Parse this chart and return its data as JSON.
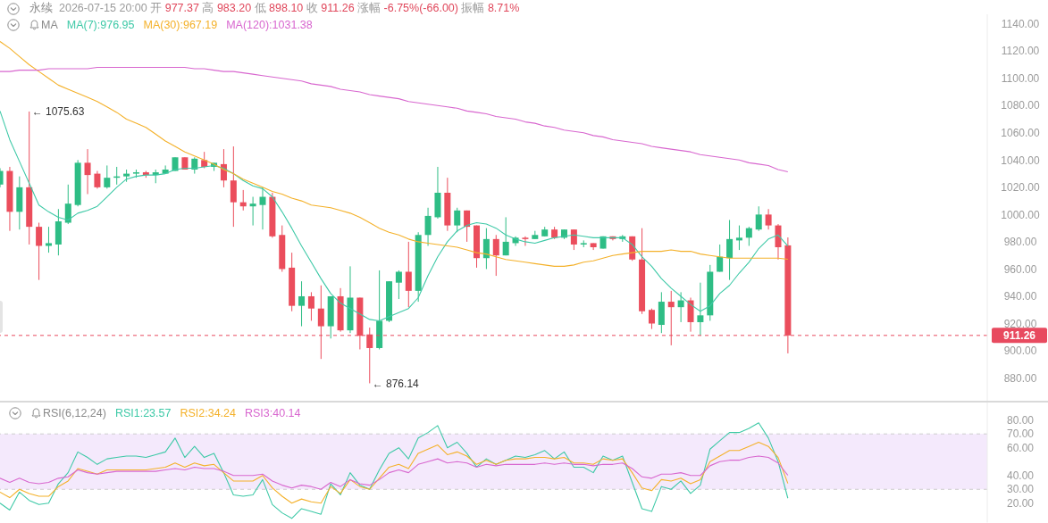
{
  "chart_data": [
    {
      "type": "candlestick",
      "title": "永续",
      "subtitle": "2026-07-15 20:00 开 977.37 高 983.20 低 898.10 收 911.26 涨幅 -6.75%(-66.00) 振幅 8.71%",
      "legend_title": "MA",
      "legend": "top left",
      "tick_labels": "y",
      "categories": [
        null,
        null,
        null,
        null,
        null,
        null,
        null,
        null,
        null,
        null,
        null,
        null,
        null,
        null,
        null,
        null,
        null,
        null,
        null,
        null,
        null,
        null,
        null,
        null,
        null,
        null,
        null,
        null,
        null,
        null,
        null,
        null,
        null,
        null,
        null,
        null,
        null,
        null,
        null,
        null,
        null,
        null,
        null,
        null,
        null,
        null,
        null,
        null,
        null,
        null,
        null,
        null,
        null,
        null,
        null,
        null,
        null,
        null,
        null,
        null,
        null,
        null,
        null,
        null,
        null,
        null,
        null,
        null,
        null,
        null,
        null,
        null,
        null,
        null,
        null,
        null,
        null,
        null,
        null,
        null,
        null,
        null
      ],
      "ohlc": [
        [
          1022,
          1034,
          1020,
          1032
        ],
        [
          1032,
          1035,
          988,
          1002
        ],
        [
          1002,
          1028,
          989,
          1020
        ],
        [
          1020,
          1075.63,
          978,
          991
        ],
        [
          991,
          994,
          952,
          977
        ],
        [
          977,
          991,
          972,
          979
        ],
        [
          978,
          1004,
          970,
          995
        ],
        [
          994,
          1022,
          993,
          1008
        ],
        [
          1007,
          1040,
          1006,
          1038
        ],
        [
          1038,
          1048,
          1015,
          1029
        ],
        [
          1030,
          1032,
          1019,
          1020
        ],
        [
          1020,
          1036,
          1019,
          1027
        ],
        [
          1027,
          1035,
          1022,
          1028
        ],
        [
          1028,
          1033,
          1024,
          1030
        ],
        [
          1030,
          1033,
          1027,
          1031
        ],
        [
          1031,
          1032,
          1027,
          1029
        ],
        [
          1029,
          1033,
          1023,
          1031
        ],
        [
          1030,
          1036,
          1030,
          1033
        ],
        [
          1032,
          1042,
          1032,
          1042
        ],
        [
          1042,
          1042,
          1033,
          1033
        ],
        [
          1033,
          1042,
          1030,
          1041
        ],
        [
          1040,
          1046,
          1034,
          1035
        ],
        [
          1035,
          1038,
          1032,
          1038
        ],
        [
          1037,
          1048,
          1020,
          1025
        ],
        [
          1025,
          1050,
          991,
          1009
        ],
        [
          1009,
          1018,
          1003,
          1006
        ],
        [
          1006,
          1013,
          992,
          1008
        ],
        [
          1007,
          1020,
          989,
          1013
        ],
        [
          1013,
          1016,
          983,
          984
        ],
        [
          985,
          992,
          958,
          960
        ],
        [
          961,
          972,
          929,
          933
        ],
        [
          933,
          951,
          918,
          940
        ],
        [
          940,
          943,
          922,
          931
        ],
        [
          931,
          948,
          894,
          918
        ],
        [
          918,
          940,
          909,
          940
        ],
        [
          940,
          946,
          914,
          915
        ],
        [
          915,
          962,
          913,
          939
        ],
        [
          939,
          939,
          901,
          911
        ],
        [
          912,
          917,
          876.14,
          902
        ],
        [
          902,
          959,
          901,
          922
        ],
        [
          922,
          951,
          921,
          951
        ],
        [
          950,
          959,
          938,
          958
        ],
        [
          958,
          980,
          932,
          944
        ],
        [
          944,
          987,
          936,
          985
        ],
        [
          985,
          1005,
          977,
          999
        ],
        [
          998,
          1035,
          997,
          1016
        ],
        [
          1016,
          1027,
          988,
          992
        ],
        [
          992,
          1005,
          987,
          1003
        ],
        [
          1003,
          1003,
          980,
          991
        ],
        [
          992,
          992,
          961,
          968
        ],
        [
          968,
          990,
          960,
          982
        ],
        [
          982,
          985,
          955,
          970
        ],
        [
          970,
          998,
          970,
          980
        ],
        [
          979,
          984,
          977,
          983
        ],
        [
          983,
          984,
          977,
          982
        ],
        [
          982,
          988,
          982,
          985
        ],
        [
          984,
          991,
          984,
          989
        ],
        [
          989,
          991,
          982,
          983
        ],
        [
          983,
          989,
          982,
          989
        ],
        [
          989,
          989,
          974,
          978
        ],
        [
          978,
          981,
          976,
          979
        ],
        [
          979,
          979,
          974,
          976
        ],
        [
          975,
          984,
          975,
          984
        ],
        [
          984,
          984,
          981,
          982
        ],
        [
          982,
          985,
          980,
          984
        ],
        [
          984,
          984,
          966,
          967
        ],
        [
          967,
          990,
          927,
          929
        ],
        [
          930,
          931,
          916,
          920
        ],
        [
          919,
          943,
          913,
          936
        ],
        [
          936,
          944,
          904,
          932
        ],
        [
          932,
          943,
          921,
          937
        ],
        [
          937,
          939,
          914,
          921
        ],
        [
          921,
          950,
          911,
          926
        ],
        [
          926,
          963,
          922,
          958
        ],
        [
          958,
          978,
          958,
          969
        ],
        [
          968,
          996,
          952,
          982
        ],
        [
          981,
          992,
          974,
          983
        ],
        [
          983,
          991,
          977,
          990
        ],
        [
          989,
          1006,
          988,
          1000
        ],
        [
          1000,
          1004,
          989,
          992
        ],
        [
          992,
          993,
          967,
          976
        ],
        [
          977.37,
          983.2,
          898.1,
          911.26
        ]
      ],
      "colors": [
        "#2ebd85",
        "#eb4d5c",
        "#2ebd85",
        "#eb4d5c",
        "#eb4d5c",
        "#2ebd85",
        "#2ebd85",
        "#2ebd85",
        "#2ebd85",
        "#eb4d5c",
        "#eb4d5c",
        "#2ebd85",
        "#2ebd85",
        "#2ebd85",
        "#2ebd85",
        "#eb4d5c",
        "#2ebd85",
        "#2ebd85",
        "#2ebd85",
        "#eb4d5c",
        "#2ebd85",
        "#eb4d5c",
        "#2ebd85",
        "#eb4d5c",
        "#eb4d5c",
        "#eb4d5c",
        "#2ebd85",
        "#2ebd85",
        "#eb4d5c",
        "#eb4d5c",
        "#eb4d5c",
        "#2ebd85",
        "#eb4d5c",
        "#eb4d5c",
        "#2ebd85",
        "#eb4d5c",
        "#2ebd85",
        "#eb4d5c",
        "#eb4d5c",
        "#2ebd85",
        "#2ebd85",
        "#2ebd85",
        "#eb4d5c",
        "#2ebd85",
        "#2ebd85",
        "#2ebd85",
        "#eb4d5c",
        "#2ebd85",
        "#eb4d5c",
        "#eb4d5c",
        "#2ebd85",
        "#eb4d5c",
        "#2ebd85",
        "#2ebd85",
        "#eb4d5c",
        "#2ebd85",
        "#2ebd85",
        "#eb4d5c",
        "#2ebd85",
        "#eb4d5c",
        "#2ebd85",
        "#eb4d5c",
        "#2ebd85",
        "#eb4d5c",
        "#2ebd85",
        "#eb4d5c",
        "#eb4d5c",
        "#eb4d5c",
        "#2ebd85",
        "#eb4d5c",
        "#2ebd85",
        "#eb4d5c",
        "#2ebd85",
        "#2ebd85",
        "#2ebd85",
        "#2ebd85",
        "#2ebd85",
        "#2ebd85",
        "#2ebd85",
        "#eb4d5c",
        "#eb4d5c",
        "#eb4d5c"
      ],
      "series": [
        {
          "name": "MA(7):976.95",
          "type": "line",
          "color": "#3ec9a7",
          "values": [
            1076,
            1055,
            1039,
            1023,
            1007,
            1002,
            998,
            996,
            1001,
            1003,
            1006,
            1013,
            1020,
            1026,
            1028,
            1029,
            1029,
            1030,
            1033,
            1034,
            1034,
            1035,
            1036,
            1034,
            1030,
            1025,
            1021,
            1019,
            1013,
            1002,
            990,
            977,
            965,
            953,
            942,
            935,
            931,
            927,
            923,
            922,
            925,
            928,
            931,
            939,
            955,
            969,
            980,
            988,
            992,
            994,
            993,
            990,
            985,
            982,
            980,
            979,
            981,
            983,
            984,
            985,
            984,
            983,
            983,
            983,
            983,
            978,
            969,
            962,
            953,
            946,
            940,
            934,
            929,
            933,
            942,
            948,
            957,
            965,
            975,
            982,
            985,
            976.95
          ]
        },
        {
          "name": "MA(30):967.19",
          "type": "line",
          "color": "#f4b12a",
          "values": [
            1127,
            1122,
            1116,
            1110,
            1105,
            1100,
            1095,
            1092,
            1089,
            1086,
            1083,
            1079,
            1075,
            1070,
            1067,
            1064,
            1059,
            1054,
            1050,
            1046,
            1043,
            1040,
            1037,
            1033,
            1030,
            1026,
            1023,
            1020,
            1017,
            1015,
            1012,
            1010,
            1007,
            1006,
            1005,
            1003,
            1001,
            998,
            994,
            990,
            987,
            985,
            982,
            980,
            979,
            978,
            977,
            976,
            974,
            972,
            971,
            969,
            967,
            966,
            965,
            964,
            963,
            962,
            962,
            963,
            965,
            966,
            968,
            970,
            971,
            972,
            973,
            973,
            973,
            974,
            973,
            973,
            971,
            970,
            969,
            968,
            968,
            968,
            968,
            968,
            968,
            967.19
          ]
        },
        {
          "name": "MA(120):1031.38",
          "type": "line",
          "color": "#d867cf",
          "values": [
            1105,
            1105,
            1106,
            1106,
            1106,
            1107,
            1107,
            1107,
            1107,
            1107,
            1108,
            1108,
            1108,
            1108,
            1108,
            1108,
            1108,
            1108,
            1108,
            1108,
            1107,
            1107,
            1106,
            1105,
            1105,
            1104,
            1103,
            1102,
            1101,
            1100,
            1099,
            1098,
            1096,
            1095,
            1094,
            1092,
            1091,
            1090,
            1088,
            1087,
            1086,
            1085,
            1083,
            1082,
            1081,
            1080,
            1079,
            1078,
            1076,
            1075,
            1074,
            1072,
            1071,
            1070,
            1068,
            1067,
            1065,
            1064,
            1062,
            1061,
            1060,
            1058,
            1057,
            1055,
            1054,
            1053,
            1052,
            1050,
            1049,
            1048,
            1047,
            1046,
            1044,
            1043,
            1042,
            1041,
            1040,
            1038,
            1037,
            1036,
            1033,
            1031.38
          ]
        }
      ],
      "ylim": [
        863,
        1147
      ],
      "yticks": [
        {
          "value": 880,
          "label": "880.00"
        },
        {
          "value": 900,
          "label": "900.00"
        },
        911.26,
        {
          "value": 920,
          "label": "920.00"
        },
        {
          "value": 940,
          "label": "940.00"
        },
        {
          "value": 960,
          "label": "960.00"
        },
        {
          "value": 980,
          "label": "980.00"
        },
        {
          "value": 1000,
          "label": "1000.00"
        },
        {
          "value": 1020,
          "label": "1020.00"
        },
        {
          "value": 1040,
          "label": "1040.00"
        },
        {
          "value": 1060,
          "label": "1060.00"
        },
        {
          "value": 1080,
          "label": "1080.00"
        },
        {
          "value": 1100,
          "label": "1100.00"
        },
        {
          "value": 1120,
          "label": "1120.00"
        },
        {
          "value": 1140,
          "label": "1140.00"
        }
      ],
      "ref_lines": [
        {
          "axis": "y",
          "value": 911.26,
          "color": "#e84a5f",
          "line_style": "dashed"
        }
      ],
      "annotations": [
        "← 1075.63",
        "← 876.14"
      ]
    },
    {
      "type": "line",
      "legend_title": "RSI(6,12,24)",
      "legend": "top left",
      "tick_labels": "y",
      "categories": [
        null,
        null,
        null,
        null,
        null,
        null,
        null,
        null,
        null,
        null,
        null,
        null,
        null,
        null,
        null,
        null,
        null,
        null,
        null,
        null,
        null,
        null,
        null,
        null,
        null,
        null,
        null,
        null,
        null,
        null,
        null,
        null,
        null,
        null,
        null,
        null,
        null,
        null,
        null,
        null,
        null,
        null,
        null,
        null,
        null,
        null,
        null,
        null,
        null,
        null,
        null,
        null,
        null,
        null,
        null,
        null,
        null,
        null,
        null,
        null,
        null,
        null,
        null,
        null,
        null,
        null,
        null,
        null,
        null,
        null,
        null,
        null,
        null,
        null,
        null,
        null,
        null,
        null,
        null,
        null,
        null,
        null
      ],
      "series": [
        {
          "name": "RSI1:23.57",
          "color": "#3ec9a7",
          "values": [
            20,
            15,
            28,
            22,
            19,
            20,
            34,
            42,
            57,
            53,
            48,
            52,
            53,
            54,
            54,
            53,
            55,
            57,
            67,
            53,
            61,
            53,
            56,
            42,
            26,
            25,
            26,
            37,
            19,
            13,
            9,
            16,
            14,
            12,
            34,
            26,
            42,
            33,
            30,
            44,
            56,
            60,
            52,
            67,
            71,
            76,
            60,
            64,
            56,
            46,
            52,
            48,
            51,
            54,
            53,
            55,
            58,
            52,
            57,
            46,
            46,
            42,
            54,
            51,
            54,
            35,
            16,
            14,
            32,
            30,
            36,
            27,
            33,
            59,
            65,
            71,
            71,
            74,
            78,
            67,
            50,
            23.57
          ]
        },
        {
          "name": "RSI2:34.24",
          "color": "#f4b12a",
          "values": [
            28,
            24,
            30,
            27,
            25,
            25,
            32,
            36,
            45,
            43,
            41,
            44,
            44,
            44,
            44,
            44,
            45,
            46,
            49,
            46,
            49,
            47,
            48,
            42,
            36,
            36,
            36,
            40,
            31,
            25,
            20,
            23,
            21,
            20,
            32,
            27,
            37,
            32,
            30,
            38,
            46,
            48,
            45,
            56,
            59,
            62,
            55,
            57,
            54,
            48,
            51,
            48,
            51,
            52,
            52,
            53,
            53,
            52,
            53,
            49,
            49,
            48,
            52,
            51,
            52,
            42,
            31,
            29,
            37,
            36,
            38,
            34,
            37,
            50,
            54,
            58,
            58,
            61,
            64,
            61,
            53,
            34.24
          ]
        },
        {
          "name": "RSI3:40.14",
          "color": "#d867cf",
          "values": [
            38,
            35,
            38,
            35,
            34,
            35,
            38,
            39,
            44,
            42,
            41,
            42,
            43,
            43,
            43,
            43,
            43,
            44,
            45,
            44,
            46,
            45,
            45,
            43,
            40,
            40,
            40,
            41,
            36,
            33,
            31,
            33,
            32,
            30,
            35,
            32,
            37,
            34,
            33,
            37,
            42,
            44,
            42,
            48,
            50,
            52,
            49,
            50,
            49,
            46,
            48,
            47,
            48,
            48,
            48,
            48,
            49,
            48,
            49,
            48,
            48,
            47,
            48,
            48,
            49,
            45,
            39,
            38,
            41,
            41,
            42,
            40,
            40,
            47,
            50,
            51,
            51,
            53,
            54,
            53,
            49,
            40.14
          ]
        }
      ],
      "ylim": [
        6,
        93
      ],
      "yticks": [
        {
          "value": 20,
          "label": "20.00"
        },
        {
          "value": 30,
          "label": "30.00"
        },
        {
          "value": 40,
          "label": "40.00"
        },
        {
          "value": 60,
          "label": "60.00"
        },
        {
          "value": 70,
          "label": "70.00"
        },
        {
          "value": 80,
          "label": "80.00"
        }
      ],
      "bands": [
        {
          "axis": "y",
          "from": 30,
          "to": 70,
          "color": "#f4e9fc"
        }
      ],
      "ref_lines": [
        {
          "axis": "y",
          "value": 70,
          "color": "#cccccc",
          "line_style": "dashed"
        },
        {
          "axis": "y",
          "value": 30,
          "color": "#cccccc",
          "line_style": "dashed"
        }
      ]
    }
  ]
}
